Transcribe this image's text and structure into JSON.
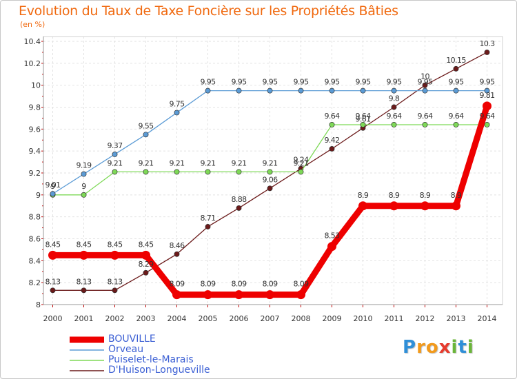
{
  "title": "Evolution du Taux de Taxe Foncière sur les Propriétés Bâties",
  "subtitle": "(en %)",
  "logo": {
    "letters": [
      "P",
      "r",
      "o",
      "x",
      "i",
      "t",
      "i"
    ],
    "colors": [
      "#2f8fd8",
      "#f29a1c",
      "#f29a1c",
      "#e63b2e",
      "#6ab539",
      "#2f8fd8",
      "#6ab539"
    ]
  },
  "chart_data": {
    "type": "line",
    "title": "Evolution du Taux de Taxe Foncière sur les Propriétés Bâties",
    "ylabel": "(en %)",
    "xlabel": "",
    "ylim": [
      8,
      10.4
    ],
    "yticks": [
      "8",
      "8.2",
      "8.4",
      "8.6",
      "8.8",
      "9",
      "9.2",
      "9.4",
      "9.6",
      "9.8",
      "10",
      "10.2",
      "10.4"
    ],
    "categories": [
      "2000",
      "2001",
      "2002",
      "2003",
      "2004",
      "2005",
      "2006",
      "2007",
      "2008",
      "2009",
      "2010",
      "2011",
      "2012",
      "2013",
      "2014"
    ],
    "series": [
      {
        "name": "D'Huison-Longueville",
        "color": "#6b1a1a",
        "values": [
          8.13,
          8.13,
          8.13,
          8.29,
          8.46,
          8.71,
          8.88,
          9.06,
          9.24,
          9.42,
          9.61,
          9.8,
          10,
          10.15,
          10.3
        ],
        "labels": [
          "8.13",
          "8.13",
          "8.13",
          "8.29",
          "8.46",
          "8.71",
          "8.88",
          "9.06",
          "9.24",
          "9.42",
          "9.61",
          "9.8",
          "10",
          "10.15",
          "10.3"
        ]
      },
      {
        "name": "Puiselet-le-Marais",
        "color": "#7ed957",
        "values": [
          9,
          9,
          9.21,
          9.21,
          9.21,
          9.21,
          9.21,
          9.21,
          9.21,
          9.64,
          9.64,
          9.64,
          9.64,
          9.64,
          9.64
        ],
        "labels": [
          "9",
          "9",
          "9.21",
          "9.21",
          "9.21",
          "9.21",
          "9.21",
          "9.21",
          "9.21",
          "9.64",
          "9.64",
          "9.64",
          "9.64",
          "9.64",
          "9.64"
        ]
      },
      {
        "name": "Orveau",
        "color": "#5b9bd5",
        "values": [
          9.01,
          9.19,
          9.37,
          9.55,
          9.75,
          9.95,
          9.95,
          9.95,
          9.95,
          9.95,
          9.95,
          9.95,
          9.95,
          9.95,
          9.95
        ],
        "labels": [
          "9.01",
          "9.19",
          "9.37",
          "9.55",
          "9.75",
          "9.95",
          "9.95",
          "9.95",
          "9.95",
          "9.95",
          "9.95",
          "9.95",
          "9.95",
          "9.95",
          "9.95"
        ]
      },
      {
        "name": "BOUVILLE",
        "color": "#ee0000",
        "values": [
          8.45,
          8.45,
          8.45,
          8.45,
          8.09,
          8.09,
          8.09,
          8.09,
          8.09,
          8.53,
          8.9,
          8.9,
          8.9,
          8.9,
          9.81
        ],
        "labels": [
          "8.45",
          "8.45",
          "8.45",
          "8.45",
          "8.09",
          "8.09",
          "8.09",
          "8.09",
          "8.09",
          "8.53",
          "8.9",
          "8.9",
          "8.9",
          "8.9",
          "9.81"
        ]
      }
    ],
    "legend": [
      "BOUVILLE",
      "Orveau",
      "Puiselet-le-Marais",
      "D'Huison-Longueville"
    ],
    "legend_position": "bottom-left",
    "grid": true
  }
}
